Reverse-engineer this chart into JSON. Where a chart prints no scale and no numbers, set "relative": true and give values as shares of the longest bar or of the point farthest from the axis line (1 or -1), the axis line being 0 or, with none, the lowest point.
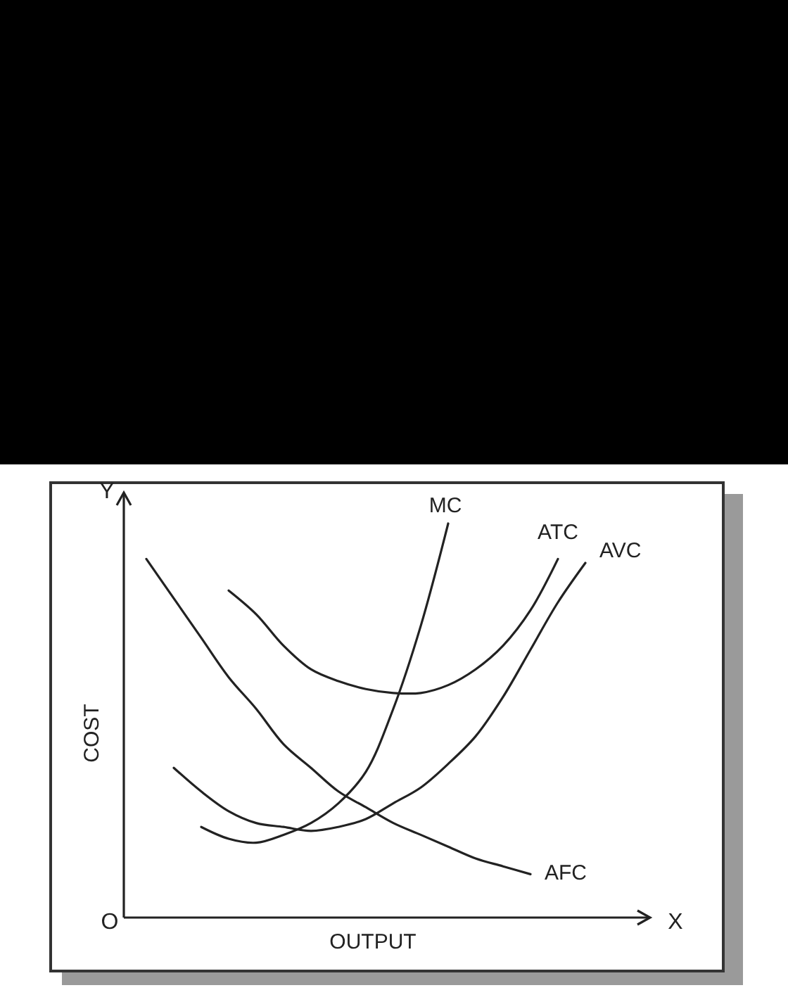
{
  "chart_data": {
    "type": "line",
    "relative": true,
    "xlabel": "OUTPUT",
    "ylabel": "COST",
    "annotations": [
      "O",
      "X",
      "Y"
    ],
    "categories": [
      null,
      null,
      null,
      null,
      null,
      null,
      null,
      null,
      null,
      null,
      null,
      null,
      null,
      null,
      null,
      null,
      null,
      null
    ],
    "series": [
      {
        "name": "MC",
        "color": "#222222",
        "values": [
          null,
          null,
          0.23,
          0.2,
          0.19,
          0.21,
          0.24,
          0.29,
          0.37,
          0.53,
          0.74,
          1.0,
          null,
          null,
          null,
          null,
          null,
          null
        ]
      },
      {
        "name": "ATC",
        "color": "#222222",
        "values": [
          null,
          null,
          null,
          0.83,
          0.77,
          0.69,
          0.63,
          0.6,
          0.58,
          0.57,
          0.57,
          0.59,
          0.63,
          0.69,
          0.78,
          0.91,
          null,
          null
        ]
      },
      {
        "name": "AVC",
        "color": "#222222",
        "values": [
          null,
          0.38,
          0.32,
          0.27,
          0.24,
          0.23,
          0.22,
          0.23,
          0.25,
          0.29,
          0.33,
          0.39,
          0.46,
          0.56,
          0.68,
          0.8,
          0.9,
          null
        ]
      },
      {
        "name": "AFC",
        "color": "#222222",
        "values": [
          0.91,
          0.81,
          0.71,
          0.61,
          0.53,
          0.44,
          0.38,
          0.32,
          0.28,
          0.24,
          0.21,
          0.18,
          0.15,
          0.13,
          0.11,
          null,
          null,
          null
        ]
      }
    ],
    "marker": "none",
    "line_style": "solid",
    "legend": false
  }
}
